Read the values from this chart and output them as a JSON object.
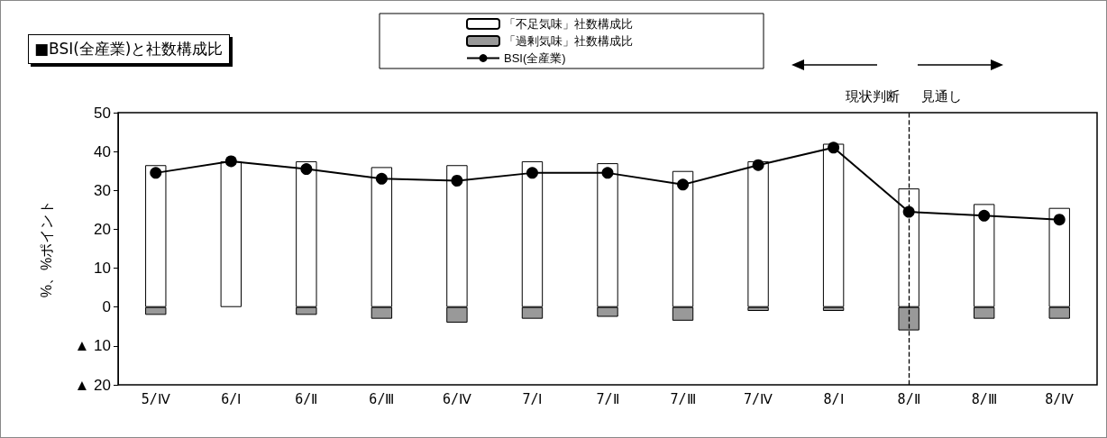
{
  "chart_data": {
    "type": "bar",
    "title": "■BSI(全産業)と社数構成比",
    "ylabel": "%、%ポイント",
    "categories": [
      "5/Ⅳ",
      "6/Ⅰ",
      "6/Ⅱ",
      "6/Ⅲ",
      "6/Ⅳ",
      "7/Ⅰ",
      "7/Ⅱ",
      "7/Ⅲ",
      "7/Ⅳ",
      "8/Ⅰ",
      "8/Ⅱ",
      "8/Ⅲ",
      "8/Ⅳ"
    ],
    "stacked": true,
    "series": [
      {
        "name": "「不足気味」社数構成比",
        "color": "#ffffff",
        "values": [
          36.5,
          37.5,
          37.5,
          36,
          36.5,
          37.5,
          37,
          35,
          37.5,
          42,
          30.5,
          26.5,
          25.5
        ]
      },
      {
        "name": "「過剰気味」社数構成比",
        "color": "#999999",
        "values": [
          -2,
          0,
          -2,
          -3,
          -4,
          -3,
          -2.5,
          -3.5,
          -1,
          -1,
          -6,
          -3,
          -3
        ]
      },
      {
        "name": "BSI(全産業)",
        "type": "line",
        "color": "#000000",
        "marker": "circle",
        "line_style": "solid",
        "values": [
          34.5,
          37.5,
          35.5,
          33,
          32.5,
          34.5,
          34.5,
          31.5,
          36.5,
          41,
          24.5,
          23.5,
          22.5
        ]
      }
    ],
    "ylim": [
      -20,
      50
    ],
    "yticks": [
      {
        "value": -20,
        "label": "▲ 20"
      },
      {
        "value": -10,
        "label": "▲ 10"
      },
      0,
      10,
      20,
      30,
      40,
      50
    ],
    "grid": false,
    "legend": "top",
    "ref_lines": [
      {
        "axis": "x",
        "value": "8/Ⅱ",
        "line_style": "dashed",
        "color": "#000000"
      }
    ],
    "annotations": [
      "現状判断",
      "見通し"
    ]
  }
}
